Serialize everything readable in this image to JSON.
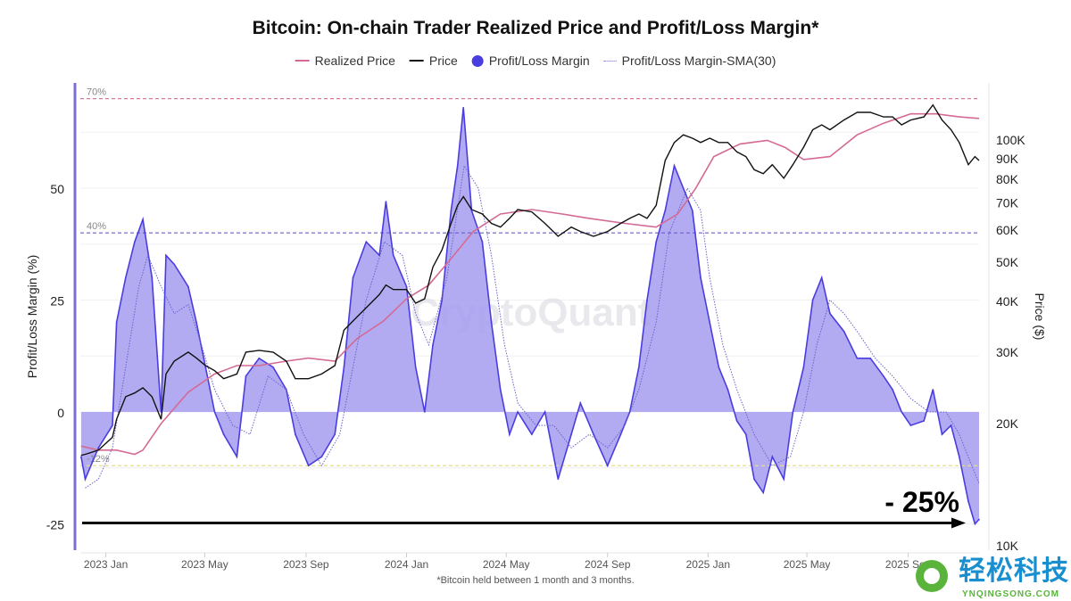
{
  "chart_data": {
    "type": "line",
    "title": "Bitcoin: On-chain Trader Realized Price and Profit/Loss Margin*",
    "footnote": "*Bitcoin held between 1 month and 3 months.",
    "ylabel_left": "Profit/Loss Margin (%)",
    "ylabel_right": "Price ($)",
    "xlim": [
      "2022-12-01",
      "2025-11-26"
    ],
    "ylim_left": [
      -30,
      74
    ],
    "ylim_right": [
      10000,
      130000
    ],
    "right_scale": "log",
    "grid": true,
    "legend_position": "top",
    "legend": [
      "Realized Price",
      "Price",
      "Profit/Loss Margin",
      "Profit/Loss Margin-SMA(30)"
    ],
    "x_ticks": [
      "2023 Jan",
      "2023 May",
      "2023 Sep",
      "2024 Jan",
      "2024 May",
      "2024 Sep",
      "2025 Jan",
      "2025 May",
      "2025 Sep"
    ],
    "x_tick_dates": [
      "2023-01-01",
      "2023-05-01",
      "2023-09-01",
      "2024-01-01",
      "2024-05-01",
      "2024-09-01",
      "2025-01-01",
      "2025-05-01",
      "2025-09-01"
    ],
    "left_ticks": [
      "50",
      "25",
      "0",
      "-25"
    ],
    "left_tick_values": [
      50,
      25,
      0,
      -25
    ],
    "right_ticks": [
      "100K",
      "90K",
      "80K",
      "70K",
      "60K",
      "50K",
      "40K",
      "30K",
      "20K",
      "10K"
    ],
    "right_tick_values": [
      100000,
      90000,
      80000,
      70000,
      60000,
      50000,
      40000,
      30000,
      20000,
      10000
    ],
    "reference_lines": [
      {
        "label": "70%",
        "value": 70,
        "color": "#d9789e"
      },
      {
        "label": "40%",
        "value": 40,
        "color": "#6b5fc9"
      },
      {
        "label": "-12%",
        "value": -12,
        "color": "#e6dc8a"
      }
    ],
    "annotation": {
      "text": "- 25%",
      "value": -25
    },
    "watermark": "CryptoQuant",
    "colors": {
      "margin_fill": "#a49cf0",
      "margin_line": "#4a3de0",
      "price": "#111111",
      "realized_price": "#d46a94",
      "sma": "#6a63c9"
    },
    "dates": [
      "2022-12-02",
      "2022-12-07",
      "2022-12-23",
      "2023-01-09",
      "2023-01-14",
      "2023-01-25",
      "2023-02-05",
      "2023-02-15",
      "2023-02-26",
      "2023-03-09",
      "2023-03-15",
      "2023-03-25",
      "2023-04-11",
      "2023-04-21",
      "2023-05-02",
      "2023-05-13",
      "2023-05-24",
      "2023-06-09",
      "2023-06-20",
      "2023-07-06",
      "2023-07-23",
      "2023-08-08",
      "2023-08-19",
      "2023-09-04",
      "2023-09-20",
      "2023-10-06",
      "2023-10-17",
      "2023-10-28",
      "2023-11-13",
      "2023-11-29",
      "2023-12-07",
      "2023-12-16",
      "2024-01-01",
      "2024-01-12",
      "2024-01-23",
      "2024-02-02",
      "2024-02-13",
      "2024-02-24",
      "2024-03-03",
      "2024-03-10",
      "2024-03-20",
      "2024-04-02",
      "2024-04-13",
      "2024-04-24",
      "2024-05-05",
      "2024-05-15",
      "2024-06-01",
      "2024-06-17",
      "2024-07-03",
      "2024-07-19",
      "2024-07-30",
      "2024-08-15",
      "2024-09-01",
      "2024-09-17",
      "2024-09-28",
      "2024-10-09",
      "2024-10-19",
      "2024-10-30",
      "2024-11-10",
      "2024-11-21",
      "2024-12-02",
      "2024-12-13",
      "2024-12-23",
      "2025-01-03",
      "2025-01-14",
      "2025-01-25",
      "2025-02-05",
      "2025-02-16",
      "2025-02-26",
      "2025-03-09",
      "2025-03-20",
      "2025-04-03",
      "2025-04-14",
      "2025-04-27",
      "2025-05-08",
      "2025-05-19",
      "2025-05-29",
      "2025-06-15",
      "2025-07-01",
      "2025-07-17",
      "2025-08-02",
      "2025-08-13",
      "2025-08-24",
      "2025-09-04",
      "2025-09-20",
      "2025-10-01",
      "2025-10-12",
      "2025-10-23",
      "2025-11-02",
      "2025-11-13",
      "2025-11-21",
      "2025-11-26"
    ],
    "series": [
      {
        "name": "Profit/Loss Margin",
        "values": [
          -10,
          -15,
          -8,
          -3,
          20,
          30,
          38,
          43,
          30,
          0,
          35,
          33,
          28,
          20,
          10,
          0,
          -5,
          -10,
          8,
          12,
          10,
          5,
          -5,
          -12,
          -10,
          -5,
          10,
          30,
          38,
          35,
          47,
          35,
          28,
          10,
          0,
          15,
          25,
          45,
          55,
          68,
          45,
          38,
          20,
          5,
          -5,
          0,
          -5,
          0,
          -15,
          -5,
          2,
          -5,
          -12,
          -5,
          0,
          10,
          25,
          38,
          45,
          55,
          50,
          45,
          30,
          20,
          10,
          5,
          -2,
          -5,
          -15,
          -18,
          -10,
          -15,
          0,
          10,
          25,
          30,
          22,
          18,
          12,
          12,
          8,
          5,
          0,
          -3,
          -2,
          5,
          -5,
          -3,
          -10,
          -20,
          -25,
          -24
        ]
      },
      {
        "name": "Price",
        "values": [
          16700,
          16800,
          17200,
          18500,
          20500,
          23300,
          23800,
          24500,
          23300,
          20500,
          26500,
          28500,
          30000,
          29000,
          27800,
          27000,
          25800,
          26500,
          30000,
          30300,
          30000,
          28500,
          25800,
          25800,
          26500,
          27800,
          34000,
          35800,
          38600,
          41600,
          43900,
          42800,
          42800,
          39600,
          40600,
          48600,
          53600,
          62300,
          69000,
          72500,
          67400,
          65700,
          62300,
          61000,
          64100,
          67400,
          66500,
          62300,
          57900,
          61000,
          59500,
          57900,
          59500,
          62300,
          64100,
          65700,
          64100,
          69000,
          89000,
          98600,
          103000,
          101000,
          98600,
          101000,
          98600,
          98600,
          93500,
          91000,
          84500,
          82600,
          86900,
          80500,
          86900,
          96000,
          106000,
          109000,
          106000,
          112000,
          117000,
          117000,
          114000,
          114000,
          109000,
          112000,
          114000,
          122000,
          112000,
          106000,
          98600,
          86900,
          91000,
          89000
        ]
      }
    ],
    "realized_price": {
      "name": "Realized Price",
      "dates": [
        "2022-12-02",
        "2022-12-23",
        "2023-01-14",
        "2023-02-05",
        "2023-02-15",
        "2023-03-09",
        "2023-04-11",
        "2023-05-13",
        "2023-06-09",
        "2023-07-06",
        "2023-08-08",
        "2023-09-04",
        "2023-10-06",
        "2023-11-02",
        "2023-12-04",
        "2024-01-01",
        "2024-01-28",
        "2024-02-24",
        "2024-03-22",
        "2024-04-24",
        "2024-06-01",
        "2024-07-08",
        "2024-08-10",
        "2024-09-22",
        "2024-10-30",
        "2024-11-25",
        "2024-12-17",
        "2025-01-08",
        "2025-02-09",
        "2025-03-14",
        "2025-04-04",
        "2025-04-27",
        "2025-05-29",
        "2025-07-01",
        "2025-08-02",
        "2025-09-04",
        "2025-10-05",
        "2025-11-02",
        "2025-11-26"
      ],
      "values": [
        17600,
        17200,
        17200,
        16800,
        17200,
        20000,
        23900,
        26500,
        27800,
        27800,
        28500,
        29000,
        28500,
        32400,
        35800,
        40600,
        43900,
        51000,
        59500,
        65700,
        67400,
        65700,
        64100,
        62300,
        61000,
        65700,
        76000,
        91000,
        97800,
        99800,
        96000,
        89500,
        91000,
        103000,
        110000,
        116000,
        116000,
        114000,
        113000
      ]
    },
    "sma30": {
      "name": "Profit/Loss Margin-SMA(30)",
      "dates": [
        "2022-12-07",
        "2022-12-23",
        "2023-01-09",
        "2023-01-25",
        "2023-02-10",
        "2023-02-21",
        "2023-03-09",
        "2023-03-25",
        "2023-04-11",
        "2023-04-27",
        "2023-05-13",
        "2023-06-04",
        "2023-06-25",
        "2023-07-17",
        "2023-08-08",
        "2023-08-29",
        "2023-09-20",
        "2023-10-12",
        "2023-10-28",
        "2023-11-13",
        "2023-12-05",
        "2023-12-27",
        "2024-01-12",
        "2024-01-28",
        "2024-02-19",
        "2024-03-11",
        "2024-03-28",
        "2024-04-13",
        "2024-04-29",
        "2024-05-15",
        "2024-06-06",
        "2024-06-28",
        "2024-07-19",
        "2024-08-10",
        "2024-09-01",
        "2024-09-22",
        "2024-10-09",
        "2024-10-30",
        "2024-11-15",
        "2024-12-07",
        "2024-12-23",
        "2025-01-03",
        "2025-01-19",
        "2025-02-05",
        "2025-02-26",
        "2025-03-20",
        "2025-04-11",
        "2025-04-27",
        "2025-05-13",
        "2025-05-29",
        "2025-06-15",
        "2025-07-01",
        "2025-07-23",
        "2025-08-13",
        "2025-09-04",
        "2025-09-26",
        "2025-10-17",
        "2025-11-02",
        "2025-11-26"
      ],
      "values": [
        -17,
        -15,
        -8,
        10,
        28,
        35,
        28,
        22,
        24,
        15,
        5,
        -3,
        -5,
        8,
        5,
        -5,
        -12,
        -5,
        10,
        25,
        38,
        35,
        22,
        15,
        30,
        55,
        50,
        35,
        15,
        2,
        -3,
        -3,
        -8,
        -5,
        -8,
        -3,
        5,
        20,
        40,
        50,
        45,
        30,
        15,
        5,
        -5,
        -12,
        -10,
        0,
        15,
        25,
        22,
        18,
        12,
        8,
        3,
        0,
        0,
        -5,
        -16
      ]
    }
  },
  "logo": {
    "text": "轻松科技",
    "subtext": "YNQINGSONG.COM"
  }
}
